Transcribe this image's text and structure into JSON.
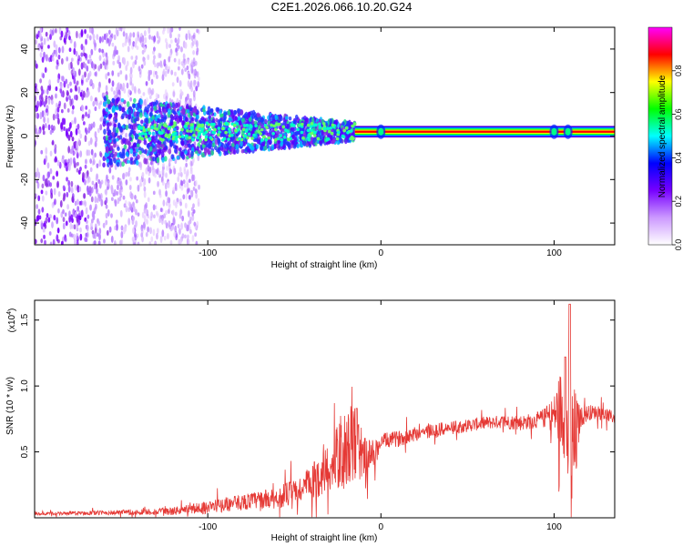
{
  "page": {
    "title": "C2E1.2026.066.10.20.G24"
  },
  "colors": {
    "snr_line": "#e53935",
    "axis": "#000000",
    "scatter_base": "#9b30ff"
  },
  "chart_data": [
    {
      "id": "spectrogram",
      "type": "heatmap",
      "xlabel": "Height of straight line (km)",
      "ylabel": "Frequency (Hz)",
      "xlim": [
        -200,
        135
      ],
      "ylim": [
        -50,
        50
      ],
      "xticks": [
        -100,
        0,
        100
      ],
      "xticklabels": [
        "-100",
        "0",
        "100"
      ],
      "yticks": [
        -40,
        -20,
        0,
        20,
        40
      ],
      "yticklabels": [
        "-40",
        "-20",
        "0",
        "20",
        "40"
      ],
      "colorbar": {
        "label": "Normalized spectral amplitude",
        "range": [
          0,
          1
        ],
        "ticks": [
          0.0,
          0.2,
          0.4,
          0.6,
          0.8
        ],
        "ticklabels": [
          "0.0",
          "0.2",
          "0.4",
          "0.6",
          "0.8"
        ],
        "colormap": [
          "#ffffff",
          "#cc99ff",
          "#7700ff",
          "#0000ff",
          "#00ffff",
          "#00ff00",
          "#ffff00",
          "#ff0000",
          "#ff00ff"
        ]
      },
      "features": {
        "carrier_frequency_hz": 2,
        "carrier_start_km": -15,
        "noisy_scatter_end_km": -115,
        "feature_bumps_km": [
          0,
          100,
          108
        ]
      }
    },
    {
      "id": "snr",
      "type": "line",
      "xlabel": "Height of straight line (km)",
      "ylabel": "SNR (10 * v/v)",
      "y_scale_label": "(x10",
      "y_scale_exp": "4",
      "xlim": [
        -200,
        135
      ],
      "ylim": [
        0,
        1.65
      ],
      "xticks": [
        -100,
        0,
        100
      ],
      "xticklabels": [
        "-100",
        "0",
        "100"
      ],
      "yticks": [
        0.5,
        1.0,
        1.5
      ],
      "yticklabels": [
        "0.5",
        "1.0",
        "1.5"
      ],
      "series": [
        {
          "name": "SNR",
          "x": [
            -200,
            -150,
            -120,
            -100,
            -80,
            -60,
            -45,
            -35,
            -25,
            -18,
            -12,
            -8,
            -5,
            -2,
            0,
            10,
            20,
            30,
            40,
            50,
            60,
            70,
            80,
            90,
            95,
            100,
            103,
            106,
            108,
            110,
            115,
            120,
            125,
            130,
            135
          ],
          "values": [
            0.03,
            0.04,
            0.05,
            0.08,
            0.12,
            0.15,
            0.22,
            0.32,
            0.45,
            0.55,
            0.5,
            0.45,
            0.48,
            0.52,
            0.58,
            0.6,
            0.64,
            0.66,
            0.68,
            0.7,
            0.72,
            0.73,
            0.72,
            0.74,
            0.76,
            0.78,
            0.82,
            0.8,
            0.6,
            0.4,
            0.76,
            0.8,
            0.8,
            0.78,
            0.76
          ],
          "envelope": [
            0.01,
            0.02,
            0.03,
            0.05,
            0.06,
            0.08,
            0.12,
            0.16,
            0.25,
            0.32,
            0.22,
            0.15,
            0.12,
            0.08,
            0.06,
            0.06,
            0.06,
            0.06,
            0.05,
            0.05,
            0.05,
            0.05,
            0.06,
            0.06,
            0.08,
            0.15,
            0.3,
            0.35,
            0.5,
            0.7,
            0.08,
            0.06,
            0.05,
            0.05,
            0.05
          ]
        }
      ]
    }
  ]
}
